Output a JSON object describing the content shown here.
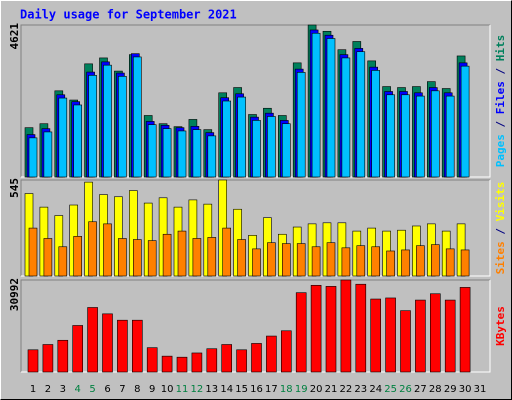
{
  "chart_data": [
    {
      "type": "bar",
      "title": "Daily usage for September 2021",
      "ylim": [
        0,
        4621
      ],
      "yticks": [
        4621
      ],
      "separator": " / ",
      "series": [
        {
          "name": "Pages",
          "color": "#00c0ff",
          "values": [
            1190,
            1370,
            2400,
            2190,
            3090,
            3400,
            3060,
            3650,
            1590,
            1470,
            1400,
            1440,
            1250,
            2310,
            2430,
            1720,
            1840,
            1620,
            3180,
            4370,
            4210,
            3620,
            3810,
            3240,
            2500,
            2500,
            2460,
            2620,
            2460,
            3370,
            null
          ]
        },
        {
          "name": "Files",
          "color": "#0000ff",
          "values": [
            1290,
            1470,
            2500,
            2290,
            3190,
            3500,
            3160,
            3750,
            1690,
            1570,
            1500,
            1540,
            1350,
            2410,
            2530,
            1820,
            1940,
            1720,
            3280,
            4470,
            4310,
            3720,
            3910,
            3340,
            2600,
            2600,
            2560,
            2720,
            2560,
            3470,
            null
          ]
        },
        {
          "name": "Hits",
          "color": "#00805c",
          "values": [
            1500,
            1620,
            2620,
            2340,
            3440,
            3620,
            3220,
            3720,
            1870,
            1620,
            1530,
            1750,
            1440,
            2560,
            2720,
            1900,
            2090,
            1870,
            3470,
            4621,
            4430,
            3870,
            4120,
            3530,
            2750,
            2720,
            2750,
            2900,
            2690,
            3680,
            null
          ]
        }
      ]
    },
    {
      "type": "bar",
      "ylim": [
        0,
        545
      ],
      "yticks": [
        545
      ],
      "separator": " / ",
      "series": [
        {
          "name": "Sites",
          "color": "#ff8000",
          "values": [
            272,
            213,
            166,
            225,
            308,
            296,
            213,
            207,
            201,
            237,
            255,
            213,
            219,
            272,
            207,
            154,
            189,
            184,
            184,
            166,
            189,
            160,
            172,
            166,
            142,
            148,
            172,
            178,
            154,
            148,
            null
          ]
        },
        {
          "name": "Visits",
          "color": "#ffff00",
          "values": [
            468,
            391,
            343,
            403,
            533,
            462,
            450,
            485,
            414,
            444,
            391,
            432,
            408,
            545,
            379,
            231,
            331,
            237,
            278,
            296,
            302,
            302,
            255,
            272,
            255,
            260,
            284,
            296,
            255,
            296,
            null
          ]
        }
      ]
    },
    {
      "type": "bar",
      "ylim": [
        0,
        30992
      ],
      "yticks": [
        30992
      ],
      "categories": [
        "1",
        "2",
        "3",
        "4",
        "5",
        "6",
        "7",
        "8",
        "9",
        "10",
        "11",
        "12",
        "13",
        "14",
        "15",
        "16",
        "17",
        "18",
        "19",
        "20",
        "21",
        "22",
        "23",
        "24",
        "25",
        "26",
        "27",
        "28",
        "29",
        "30",
        "31"
      ],
      "label_colors": [
        "#000000",
        "#000000",
        "#000000",
        "#008040",
        "#008040",
        "#000000",
        "#000000",
        "#000000",
        "#000000",
        "#000000",
        "#008040",
        "#008040",
        "#000000",
        "#000000",
        "#000000",
        "#000000",
        "#000000",
        "#008040",
        "#008040",
        "#000000",
        "#000000",
        "#000000",
        "#000000",
        "#000000",
        "#008040",
        "#008040",
        "#000000",
        "#000000",
        "#000000",
        "#000000",
        "#000000"
      ],
      "series": [
        {
          "name": "KBytes",
          "color": "#ff0000",
          "values": [
            7480,
            9260,
            10690,
            15670,
            21730,
            19590,
            17450,
            17450,
            8190,
            5340,
            4990,
            6410,
            7840,
            9260,
            7480,
            9620,
            12110,
            13890,
            26720,
            29210,
            28850,
            30992,
            29570,
            24580,
            24940,
            20660,
            24230,
            26360,
            24230,
            28500,
            null
          ]
        }
      ]
    }
  ]
}
